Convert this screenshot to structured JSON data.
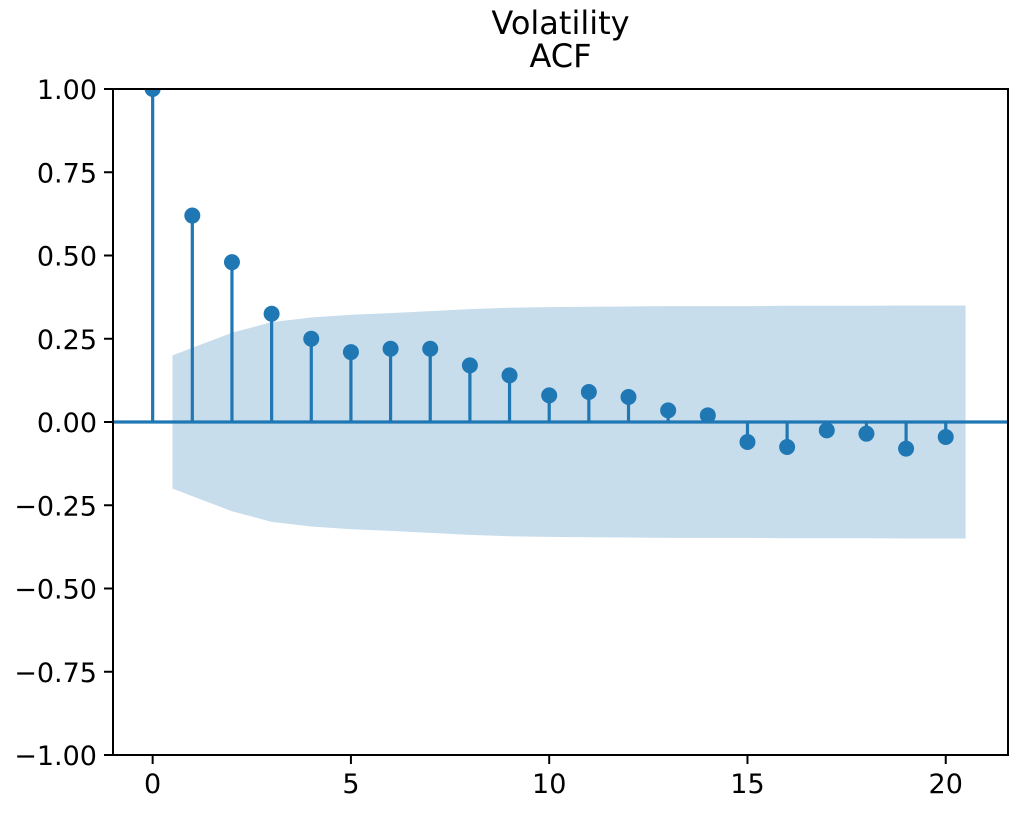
{
  "chart_data": {
    "type": "stem",
    "title": "Volatility",
    "subtitle": "ACF",
    "xlabel": "",
    "ylabel": "",
    "x": [
      0,
      1,
      2,
      3,
      4,
      5,
      6,
      7,
      8,
      9,
      10,
      11,
      12,
      13,
      14,
      15,
      16,
      17,
      18,
      19,
      20
    ],
    "values": [
      1.0,
      0.62,
      0.48,
      0.325,
      0.25,
      0.21,
      0.22,
      0.22,
      0.17,
      0.14,
      0.08,
      0.09,
      0.075,
      0.035,
      0.02,
      -0.06,
      -0.075,
      -0.025,
      -0.035,
      -0.08,
      -0.045
    ],
    "baseline_value": 0,
    "confidence_band": {
      "x": [
        0.5,
        2,
        3,
        4,
        5,
        6,
        7,
        8,
        9,
        10,
        11,
        12,
        13,
        14,
        15,
        16,
        17,
        18,
        19,
        20.5
      ],
      "upper": [
        0.2,
        0.268,
        0.3,
        0.314,
        0.322,
        0.327,
        0.333,
        0.339,
        0.343,
        0.345,
        0.346,
        0.347,
        0.348,
        0.348,
        0.348,
        0.349,
        0.349,
        0.349,
        0.35,
        0.35
      ],
      "lower": [
        -0.2,
        -0.268,
        -0.3,
        -0.314,
        -0.322,
        -0.327,
        -0.333,
        -0.339,
        -0.343,
        -0.345,
        -0.346,
        -0.347,
        -0.348,
        -0.348,
        -0.348,
        -0.349,
        -0.349,
        -0.349,
        -0.35,
        -0.35
      ]
    },
    "xlim": [
      -1.0,
      21.57
    ],
    "ylim": [
      -1.0,
      1.0
    ],
    "xticks": {
      "values": [
        0,
        5,
        10,
        15,
        20
      ],
      "labels": [
        "0",
        "5",
        "10",
        "15",
        "20"
      ]
    },
    "yticks": {
      "values": [
        1.0,
        0.75,
        0.5,
        0.25,
        0.0,
        -0.25,
        -0.5,
        -0.75,
        -1.0
      ],
      "labels": [
        "1.00",
        "0.75",
        "0.50",
        "0.25",
        "0.00",
        "−0.25",
        "−0.50",
        "−0.75",
        "−1.00"
      ]
    },
    "legend": null,
    "grid": false,
    "colors": {
      "stem": "#1f77b4",
      "marker": "#1f77b4",
      "band": "#c7ddec",
      "spine": "#000000",
      "background": "#ffffff"
    }
  }
}
